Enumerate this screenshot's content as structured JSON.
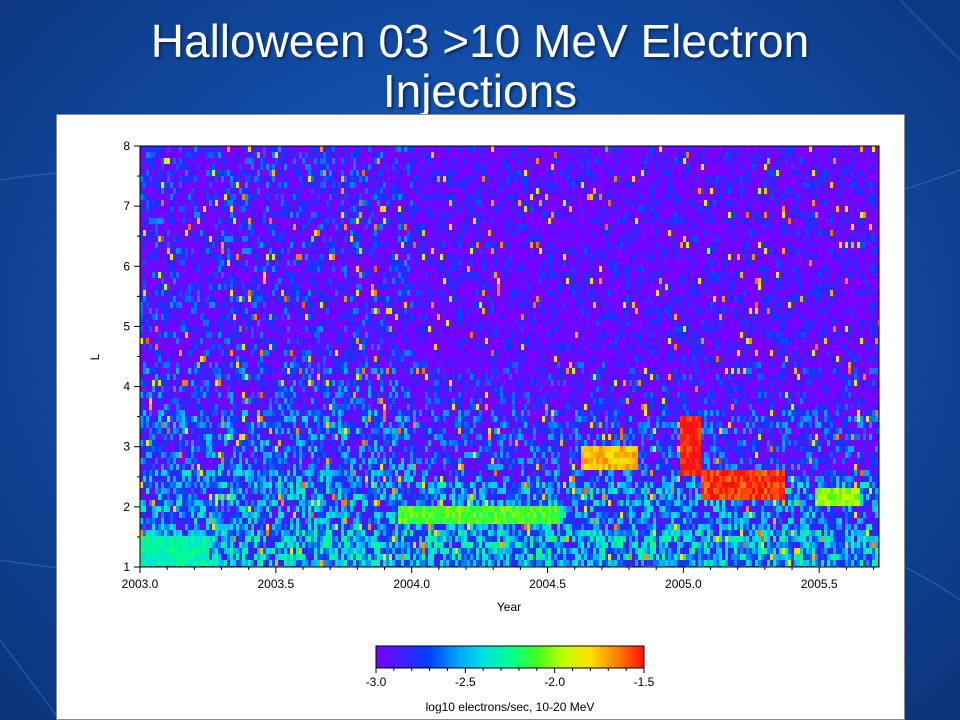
{
  "slide": {
    "title_line1": "Halloween 03  >10 MeV Electron",
    "title_line2": "Injections"
  },
  "colors": {
    "background": "#124da8",
    "title": "#ffffff",
    "colormap": [
      "#7a00ff",
      "#3a20ff",
      "#0040ff",
      "#00a0ff",
      "#00e0e0",
      "#00ff90",
      "#40ff20",
      "#c0ff00",
      "#ffe000",
      "#ff8000",
      "#ff1010"
    ]
  },
  "chart_data": {
    "type": "heatmap",
    "title": "",
    "xlabel": "Year",
    "ylabel": "L",
    "xlim": [
      2003.0,
      2005.72
    ],
    "ylim": [
      1,
      8
    ],
    "x_ticks": [
      "2003.0",
      "2003.5",
      "2004.0",
      "2004.5",
      "2005.0",
      "2005.5"
    ],
    "x_tick_values": [
      2003.0,
      2003.5,
      2004.0,
      2004.5,
      2005.0,
      2005.5
    ],
    "y_ticks": [
      "1",
      "2",
      "3",
      "4",
      "5",
      "6",
      "7",
      "8"
    ],
    "y_tick_values": [
      1,
      2,
      3,
      4,
      5,
      6,
      7,
      8
    ],
    "colorbar": {
      "label": "log10 electrons/sec, 10-20 MeV",
      "range": [
        -3.0,
        -1.5
      ],
      "ticks": [
        "-3.0",
        "-2.5",
        "-2.0",
        "-1.5"
      ],
      "tick_values": [
        -3.0,
        -2.5,
        -2.0,
        -1.5
      ]
    },
    "features": [
      {
        "x_range": [
          2003.0,
          2003.25
        ],
        "L_range": [
          1.0,
          1.5
        ],
        "value": -2.3
      },
      {
        "x_range": [
          2003.95,
          2004.55
        ],
        "L_range": [
          1.75,
          2.05
        ],
        "value": -2.1
      },
      {
        "x_range": [
          2004.62,
          2004.83
        ],
        "L_range": [
          2.65,
          3.0
        ],
        "value": -1.75
      },
      {
        "x_range": [
          2004.99,
          2005.07
        ],
        "L_range": [
          2.55,
          3.5
        ],
        "value": -1.5
      },
      {
        "x_range": [
          2005.07,
          2005.37
        ],
        "L_range": [
          2.15,
          2.65
        ],
        "value": -1.55
      },
      {
        "x_range": [
          2005.48,
          2005.65
        ],
        "L_range": [
          2.05,
          2.35
        ],
        "value": -2.0
      }
    ]
  }
}
